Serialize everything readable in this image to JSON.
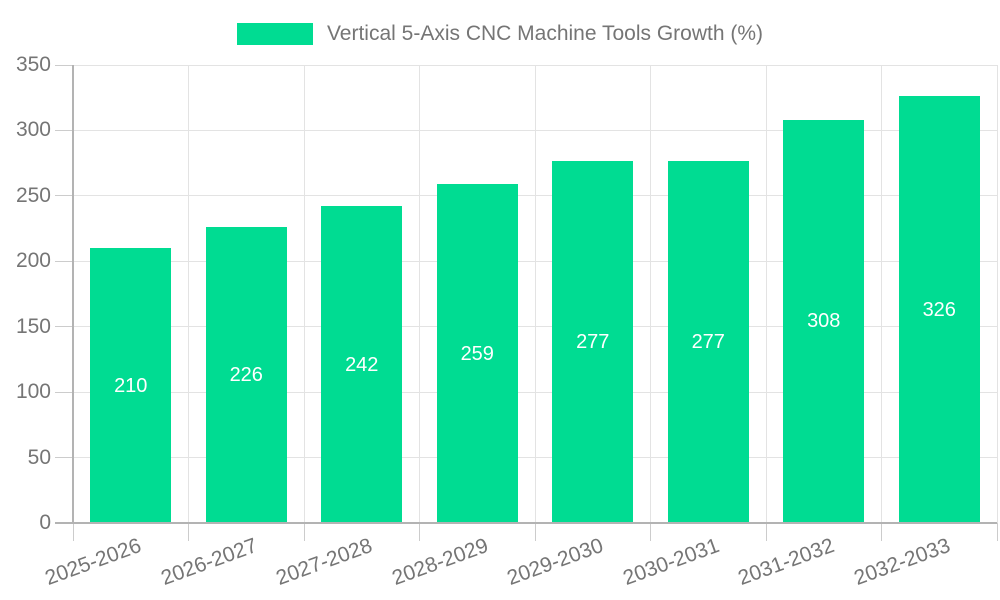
{
  "chart_data": {
    "type": "bar",
    "title": "Vertical 5-Axis CNC Machine Tools Growth (%)",
    "categories": [
      "2025-2026",
      "2026-2027",
      "2027-2028",
      "2028-2029",
      "2029-2030",
      "2030-2031",
      "2031-2032",
      "2032-2033"
    ],
    "series": [
      {
        "name": "Vertical 5-Axis CNC Machine Tools Growth (%)",
        "values": [
          210,
          226,
          242,
          259,
          277,
          277,
          308,
          326
        ]
      }
    ],
    "xlabel": "",
    "ylabel": "",
    "ylim": [
      0,
      350
    ],
    "yticks": [
      0,
      50,
      100,
      150,
      200,
      250,
      300,
      350
    ],
    "grid": true,
    "legend_position": "top",
    "x_tick_rotation_deg": -20,
    "bar_value_labels_shown": true
  },
  "colors": {
    "bar": "#00DC92",
    "bar_value_label": "#ffffff",
    "grid_line": "#e3e3e3",
    "axis_line": "#b3b3b3",
    "tick_mark": "#cccccc",
    "tick_label": "#757575",
    "legend_text": "#757575",
    "background": "#ffffff"
  }
}
